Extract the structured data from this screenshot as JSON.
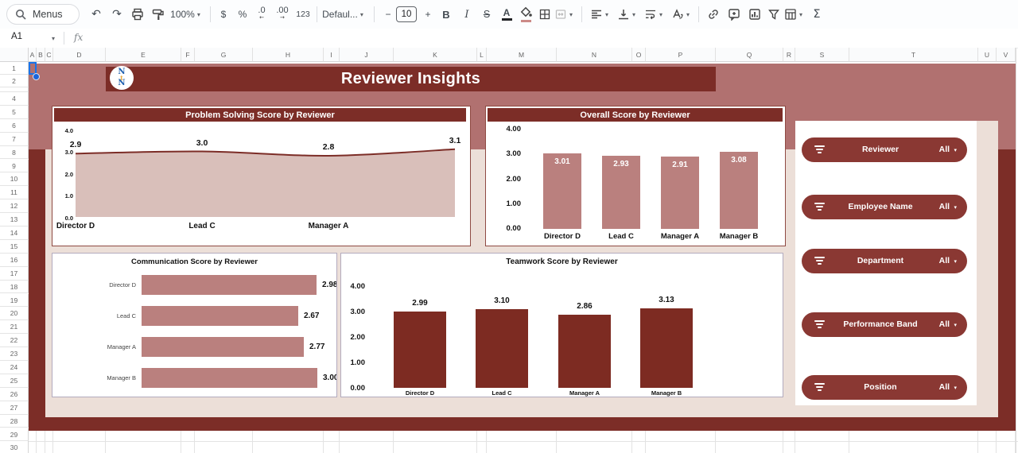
{
  "toolbar": {
    "menus_label": "Menus",
    "zoom": "100%",
    "currency": "$",
    "percent": "%",
    "decrease_decimal": ".0",
    "increase_decimal": ".00",
    "more_formats": "123",
    "font": "Defaul...",
    "decrease_font": "−",
    "font_size": "10",
    "increase_font": "+",
    "bold": "B",
    "italic": "I",
    "strikethrough": "S",
    "text_color": "A",
    "sum": "Σ",
    "icons": [
      "search",
      "undo",
      "redo",
      "print",
      "paint-format",
      "zoom-dropdown",
      "currency-format",
      "percent-format",
      "decrease-decimal",
      "increase-decimal",
      "more-formats",
      "font-select",
      "decrease-font-size",
      "font-size",
      "increase-font-size",
      "bold",
      "italic",
      "strikethrough",
      "text-color",
      "fill-color",
      "borders",
      "merge-cells",
      "horizontal-align",
      "vertical-align",
      "text-wrap",
      "text-rotation",
      "insert-link",
      "insert-comment",
      "insert-chart",
      "create-filter",
      "table",
      "functions"
    ]
  },
  "formula_bar": {
    "cell_reference": "A1",
    "fx": "fx"
  },
  "grid": {
    "column_headers": [
      "A",
      "B",
      "C",
      "D",
      "E",
      "F",
      "G",
      "H",
      "I",
      "J",
      "K",
      "L",
      "M",
      "N",
      "O",
      "P",
      "Q",
      "R",
      "S",
      "T",
      "U",
      "V"
    ],
    "row_numbers": [
      "1",
      "2",
      "",
      "4",
      "5",
      "6",
      "7",
      "8",
      "9",
      "10",
      "11",
      "12",
      "13",
      "14",
      "15",
      "16",
      "17",
      "18",
      "19",
      "20",
      "21",
      "22",
      "23",
      "24",
      "25",
      "26",
      "27",
      "28",
      "29",
      "30"
    ]
  },
  "dashboard": {
    "title": "Reviewer Insights",
    "logo": {
      "top": "N",
      "middle": "t",
      "bottom": "N"
    },
    "filters": [
      {
        "label": "Reviewer",
        "value": "All"
      },
      {
        "label": "Employee Name",
        "value": "All"
      },
      {
        "label": "Department",
        "value": "All"
      },
      {
        "label": "Performance Band",
        "value": "All"
      },
      {
        "label": "Position",
        "value": "All"
      }
    ],
    "colors": {
      "maroon": "#7c2d27",
      "pink": "#b17170",
      "beige": "#ecdfd8",
      "rose": "#ba807e",
      "area_fill": "#d9bfba",
      "pill": "#8a3833",
      "dark_bar": "#7d2b22"
    }
  },
  "chart_data": [
    {
      "type": "area",
      "title": "Problem Solving Score by Reviewer",
      "categories": [
        "Director D",
        "Lead C",
        "Manager A",
        "Manager B"
      ],
      "values": [
        2.9,
        3.0,
        2.8,
        3.1
      ],
      "value_labels": [
        "2.9",
        "3.0",
        "2.8",
        "3.1"
      ],
      "x_axis_labels_visible": [
        "Director D",
        "Lead C",
        "Manager A"
      ],
      "yticks": [
        "4.0",
        "3.0",
        "2.0",
        "1.0",
        "0.0"
      ],
      "ylim": [
        0,
        4
      ],
      "grid": false,
      "legend": false
    },
    {
      "type": "bar",
      "title": "Overall Score by Reviewer",
      "categories": [
        "Director D",
        "Lead C",
        "Manager A",
        "Manager B"
      ],
      "values": [
        3.01,
        2.93,
        2.91,
        3.08
      ],
      "value_labels": [
        "3.01",
        "2.93",
        "2.91",
        "3.08"
      ],
      "yticks": [
        "4.00",
        "3.00",
        "2.00",
        "1.00",
        "0.00"
      ],
      "ylim": [
        0,
        4
      ],
      "label_position": "inside-top",
      "grid": false,
      "legend": false
    },
    {
      "type": "hbar",
      "title": "Communication Score by Reviewer",
      "categories": [
        "Director D",
        "Lead C",
        "Manager A",
        "Manager B"
      ],
      "values": [
        2.98,
        2.67,
        2.77,
        3.0
      ],
      "value_labels": [
        "2.98",
        "2.67",
        "2.77",
        "3.00"
      ],
      "xlim": [
        0,
        3.2
      ],
      "grid": false,
      "legend": false
    },
    {
      "type": "bar",
      "title": "Teamwork Score by Reviewer",
      "categories": [
        "Director D",
        "Lead C",
        "Manager A",
        "Manager B"
      ],
      "values": [
        2.99,
        3.1,
        2.86,
        3.13
      ],
      "value_labels": [
        "2.99",
        "3.10",
        "2.86",
        "3.13"
      ],
      "yticks": [
        "4.00",
        "3.00",
        "2.00",
        "1.00",
        "0.00"
      ],
      "ylim": [
        0,
        4
      ],
      "label_position": "above",
      "grid": false,
      "legend": false
    }
  ]
}
